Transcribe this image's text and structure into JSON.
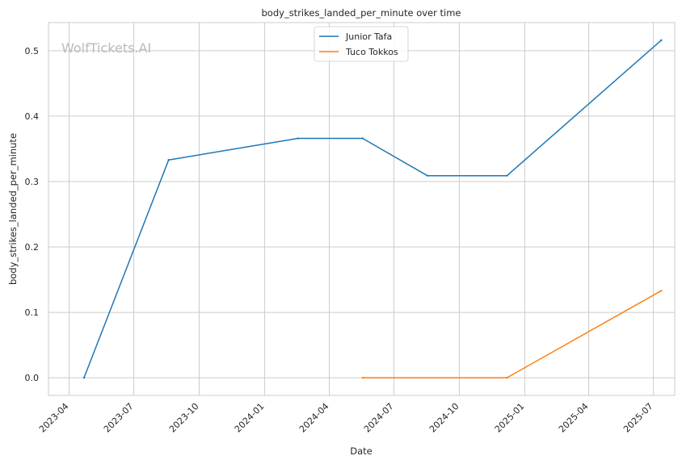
{
  "chart_data": {
    "type": "line",
    "title": "body_strikes_landed_per_minute over time",
    "xlabel": "Date",
    "ylabel": "body_strikes_landed_per_minute",
    "watermark": "WolfTickets.AI",
    "x_ticks": [
      "2023-04",
      "2023-07",
      "2023-10",
      "2024-01",
      "2024-04",
      "2024-07",
      "2024-10",
      "2025-01",
      "2025-04",
      "2025-07"
    ],
    "y_ticks": [
      "0.0",
      "0.1",
      "0.2",
      "0.3",
      "0.4",
      "0.5"
    ],
    "ylim": [
      -0.027,
      0.543
    ],
    "xlim": [
      "2023-03-03",
      "2025-07-31"
    ],
    "grid": true,
    "legend_position": "top-center",
    "series": [
      {
        "name": "Junior Tafa",
        "color": "#1f77b4",
        "x": [
          "2023-04-22",
          "2023-08-19",
          "2024-02-17",
          "2024-05-18",
          "2024-08-17",
          "2024-12-07",
          "2025-07-12"
        ],
        "y": [
          0.0,
          0.333,
          0.366,
          0.366,
          0.309,
          0.309,
          0.516
        ]
      },
      {
        "name": "Tuco Tokkos",
        "color": "#ff7f0e",
        "x": [
          "2024-05-18",
          "2024-12-07",
          "2025-07-12"
        ],
        "y": [
          0.0,
          0.0,
          0.133
        ]
      }
    ]
  }
}
